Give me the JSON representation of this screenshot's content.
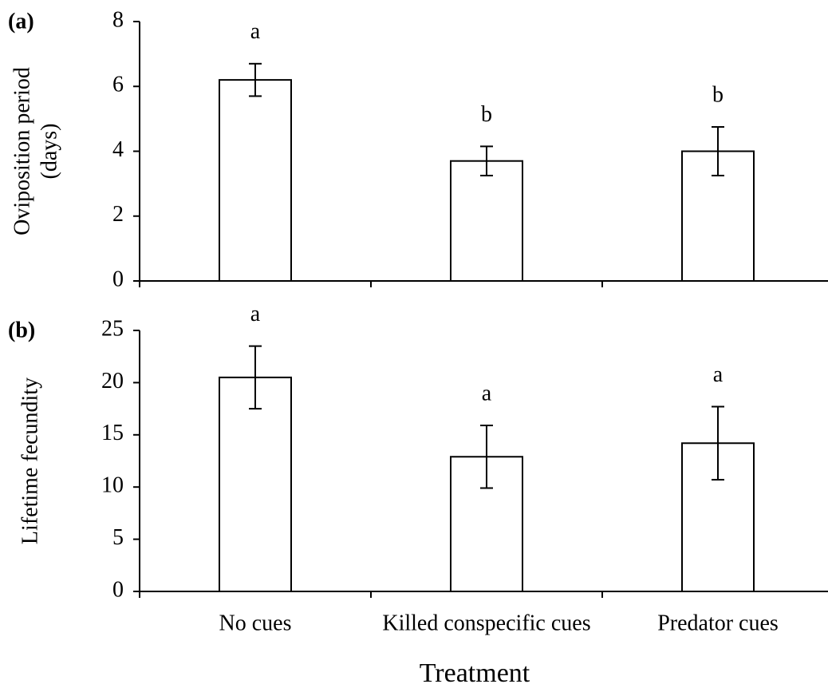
{
  "chart_data": [
    {
      "type": "bar",
      "panel_label": "(a)",
      "ylabel": [
        "Oviposition period",
        "(days)"
      ],
      "values": [
        6.2,
        3.7,
        4.0
      ],
      "errors": [
        0.5,
        0.45,
        0.75
      ],
      "annotations": [
        "a",
        "b",
        "b"
      ],
      "color": "#ffffff",
      "ylim": [
        0,
        8
      ],
      "yticks": [
        0,
        2,
        4,
        6,
        8
      ]
    },
    {
      "type": "bar",
      "panel_label": "(b)",
      "ylabel": [
        "Lifetime fecundity"
      ],
      "xlabel": "Treatment",
      "categories": [
        "No cues",
        "Killed conspecific cues",
        "Predator cues"
      ],
      "values": [
        20.5,
        12.9,
        14.2
      ],
      "errors": [
        3.0,
        3.0,
        3.5
      ],
      "annotations": [
        "a",
        "a",
        "a"
      ],
      "color": "#ffffff",
      "ylim": [
        0,
        25
      ],
      "yticks": [
        0,
        5,
        10,
        15,
        20,
        25
      ]
    }
  ]
}
